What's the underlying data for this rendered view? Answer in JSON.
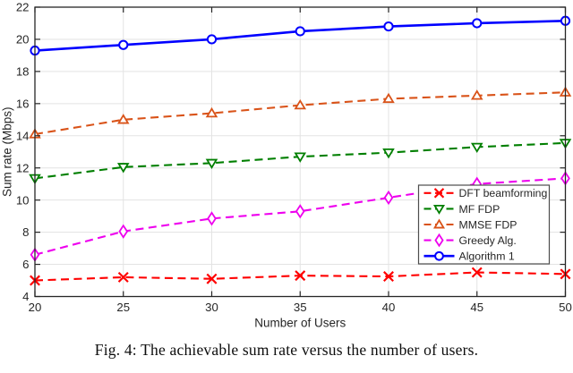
{
  "figure": {
    "caption": "Fig. 4: The achievable sum rate versus the number of users."
  },
  "chart_data": {
    "type": "line",
    "title": "",
    "xlabel": "Number of Users",
    "ylabel": "Sum rate (Mbps)",
    "xlim": [
      20,
      50
    ],
    "ylim": [
      4,
      22
    ],
    "xticks": [
      20,
      25,
      30,
      35,
      40,
      45,
      50
    ],
    "yticks": [
      4,
      6,
      8,
      10,
      12,
      14,
      16,
      18,
      20,
      22
    ],
    "grid": true,
    "legend_position": "lower-right-inside",
    "x": [
      20,
      25,
      30,
      35,
      40,
      45,
      50
    ],
    "series": [
      {
        "name": "DFT beamforming",
        "color": "#FF0000",
        "linestyle": "dashed",
        "marker": "x",
        "values": [
          5.0,
          5.2,
          5.1,
          5.3,
          5.25,
          5.5,
          5.4
        ]
      },
      {
        "name": "MF FDP",
        "color": "#007F00",
        "linestyle": "dashed",
        "marker": "triangle-down",
        "values": [
          11.35,
          12.05,
          12.3,
          12.7,
          12.95,
          13.3,
          13.55
        ]
      },
      {
        "name": "MMSE FDP",
        "color": "#D95319",
        "linestyle": "dashed",
        "marker": "triangle-up",
        "values": [
          14.1,
          15.0,
          15.4,
          15.9,
          16.3,
          16.5,
          16.7
        ]
      },
      {
        "name": "Greedy Alg.",
        "color": "#EE00EE",
        "linestyle": "dashed",
        "marker": "diamond",
        "values": [
          6.6,
          8.05,
          8.85,
          9.3,
          10.15,
          11.0,
          11.35
        ]
      },
      {
        "name": "Algorithm 1",
        "color": "#0000FF",
        "linestyle": "solid",
        "marker": "circle",
        "values": [
          19.3,
          19.65,
          20.0,
          20.5,
          20.8,
          21.0,
          21.15
        ]
      }
    ],
    "colors": {
      "axis": "#262626",
      "grid": "#e3e3e3",
      "legend_border": "#4d4d4d",
      "background": "#ffffff"
    }
  }
}
